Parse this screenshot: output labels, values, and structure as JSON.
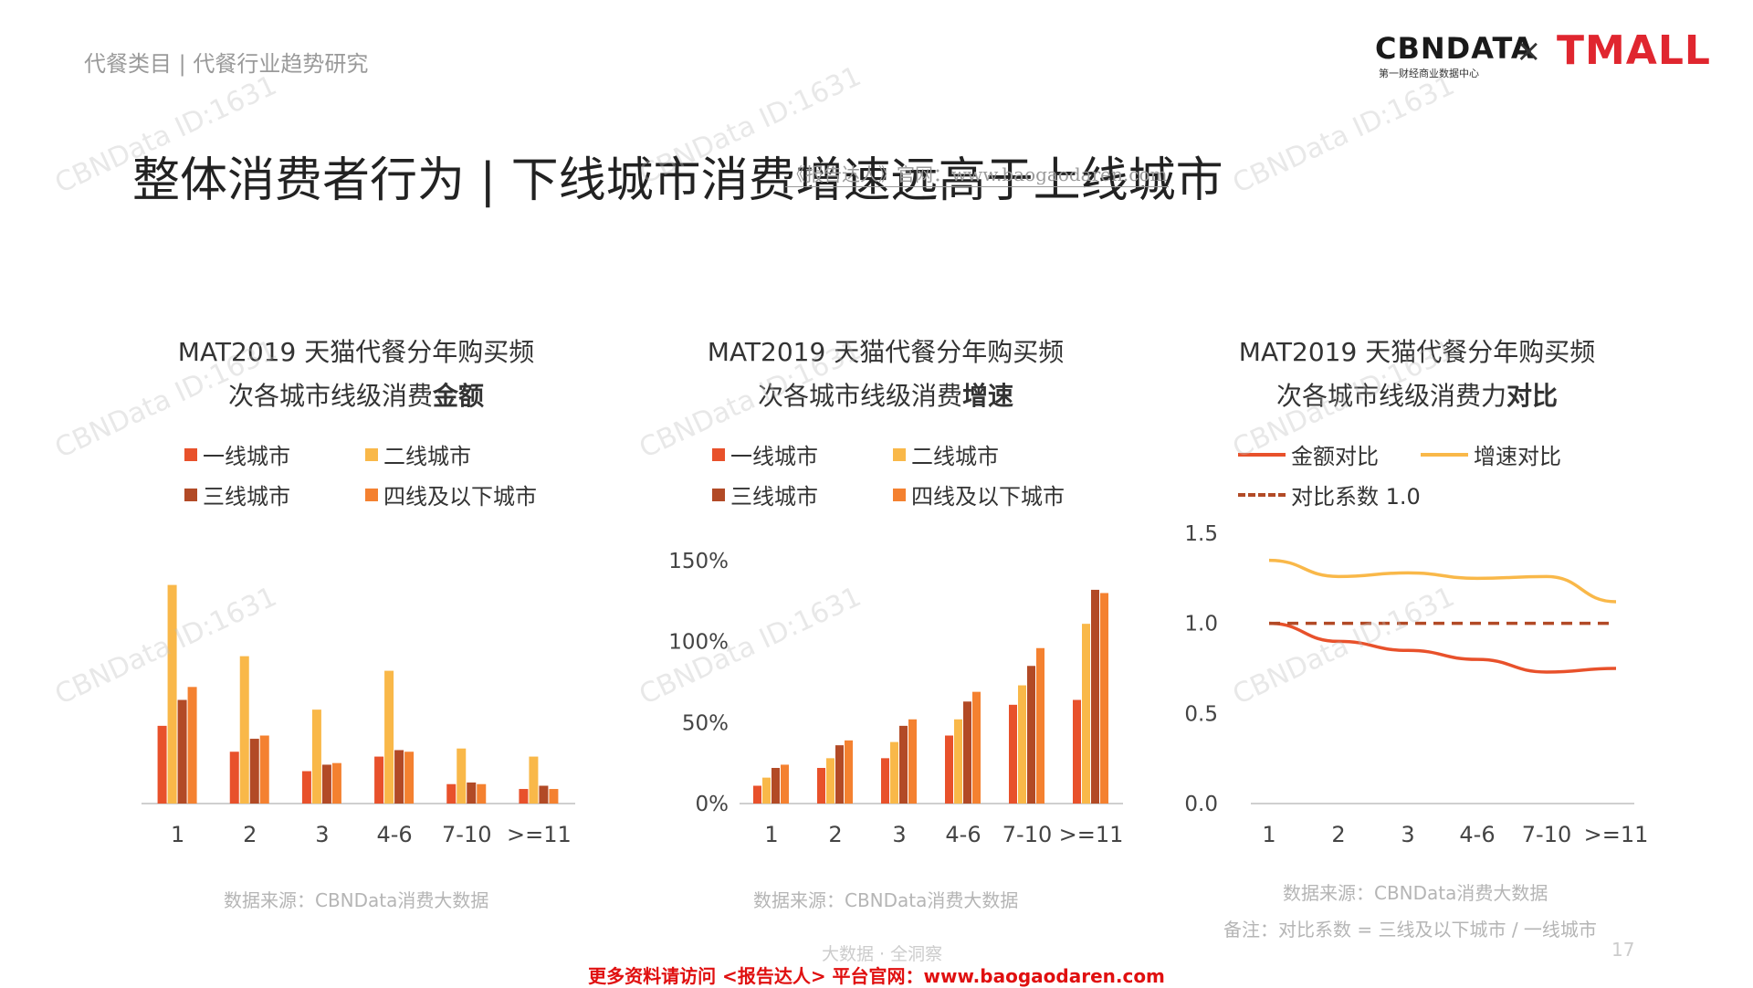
{
  "header": {
    "breadcrumb": "代餐类目 | 代餐行业趋势研究",
    "title": "整体消费者行为 | 下线城市消费增速远高于上线城市",
    "watermark_line": "《报告达人》官网：www.baogaodaren.com",
    "logo_cbn": "CBNDATA",
    "logo_cbn_sub": "第一财经商业数据中心",
    "logo_times": "×",
    "logo_tmall": "TMALL"
  },
  "watermark": "CBNData ID:1631",
  "colors": {
    "tier1": "#E8512B",
    "tier2": "#F9B849",
    "tier3": "#B24A26",
    "tier4": "#F48130",
    "line_amount": "#E8512B",
    "line_growth": "#F9B849",
    "line_ref": "#B24A26"
  },
  "legend_bars": [
    "一线城市",
    "二线城市",
    "三线城市",
    "四线及以下城市"
  ],
  "legend_lines": [
    "金额对比",
    "增速对比",
    "对比系数 1.0"
  ],
  "panels": [
    {
      "title_line1": "MAT2019 天猫代餐分年购买频",
      "title_line2_prefix": "次各城市线级消费",
      "title_line2_bold": "金额",
      "source": "数据来源：CBNData消费大数据"
    },
    {
      "title_line1": "MAT2019 天猫代餐分年购买频",
      "title_line2_prefix": "次各城市线级消费",
      "title_line2_bold": "增速",
      "source": "数据来源：CBNData消费大数据"
    },
    {
      "title_line1": "MAT2019 天猫代餐分年购买频",
      "title_line2_prefix": "次各城市线级消费力",
      "title_line2_bold": "对比",
      "source": "数据来源：CBNData消费大数据",
      "note": "备注：对比系数 = 三线及以下城市 / 一线城市"
    }
  ],
  "chart_data": [
    {
      "type": "bar",
      "title": "MAT2019 天猫代餐分年购买频次各城市线级消费金额",
      "categories": [
        "1",
        "2",
        "3",
        "4-6",
        "7-10",
        ">=11"
      ],
      "series": [
        {
          "name": "一线城市",
          "values": [
            0.48,
            0.32,
            0.2,
            0.29,
            0.12,
            0.09
          ]
        },
        {
          "name": "二线城市",
          "values": [
            1.35,
            0.91,
            0.58,
            0.82,
            0.34,
            0.29
          ]
        },
        {
          "name": "三线城市",
          "values": [
            0.64,
            0.4,
            0.24,
            0.33,
            0.13,
            0.11
          ]
        },
        {
          "name": "四线及以下城市",
          "values": [
            0.72,
            0.42,
            0.25,
            0.32,
            0.12,
            0.09
          ]
        }
      ],
      "ylim": [
        0,
        1.5
      ],
      "xlabel": "",
      "ylabel": "",
      "show_y_axis": false
    },
    {
      "type": "bar",
      "title": "MAT2019 天猫代餐分年购买频次各城市线级消费增速",
      "categories": [
        "1",
        "2",
        "3",
        "4-6",
        "7-10",
        ">=11"
      ],
      "series": [
        {
          "name": "一线城市",
          "values": [
            11,
            22,
            28,
            42,
            61,
            64
          ]
        },
        {
          "name": "二线城市",
          "values": [
            16,
            28,
            38,
            52,
            73,
            111
          ]
        },
        {
          "name": "三线城市",
          "values": [
            22,
            36,
            48,
            63,
            85,
            132
          ]
        },
        {
          "name": "四线及以下城市",
          "values": [
            24,
            39,
            52,
            69,
            96,
            130
          ]
        }
      ],
      "yticks": [
        "0%",
        "50%",
        "100%",
        "150%"
      ],
      "ylim": [
        0,
        150
      ],
      "unit": "%"
    },
    {
      "type": "line",
      "title": "MAT2019 天猫代餐分年购买频次各城市线级消费力对比",
      "categories": [
        "1",
        "2",
        "3",
        "4-6",
        "7-10",
        ">=11"
      ],
      "series": [
        {
          "name": "金额对比",
          "values": [
            1.0,
            0.9,
            0.85,
            0.8,
            0.73,
            0.75
          ]
        },
        {
          "name": "增速对比",
          "values": [
            1.35,
            1.26,
            1.28,
            1.25,
            1.26,
            1.12
          ]
        },
        {
          "name": "对比系数 1.0",
          "values": [
            1.0,
            1.0,
            1.0,
            1.0,
            1.0,
            1.0
          ],
          "style": "dashed"
        }
      ],
      "yticks": [
        "0.0",
        "0.5",
        "1.0",
        "1.5"
      ],
      "ylim": [
        0,
        1.5
      ]
    }
  ],
  "footer": {
    "small": "大数据 · 全洞察",
    "page": "17",
    "cta": "更多资料请访问 <报告达人> 平台官网：www.baogaodaren.com"
  }
}
